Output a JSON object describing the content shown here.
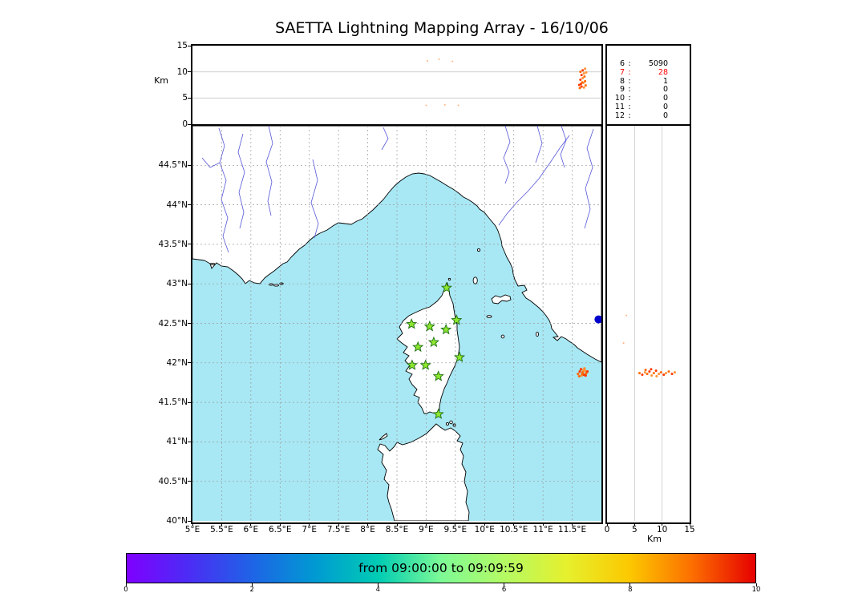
{
  "title": "SAETTA Lightning Mapping Array - 16/10/06",
  "chart_data": {
    "type": "scatter",
    "subplots": [
      "altitude_vs_longitude",
      "source_count_by_station",
      "map_lat_lon",
      "altitude_vs_latitude",
      "time_colorbar"
    ],
    "alt_axis": {
      "label": "Km",
      "range": [
        0,
        15
      ],
      "grid": [
        5,
        10
      ],
      "ticks": [
        {
          "v": 0,
          "label": "0"
        },
        {
          "v": 5,
          "label": "5"
        },
        {
          "v": 10,
          "label": "10"
        },
        {
          "v": 15,
          "label": "15"
        }
      ]
    },
    "map": {
      "lon_range": [
        5,
        12
      ],
      "lat_range": [
        40,
        45
      ],
      "lat_ticks": [
        {
          "v": 44.5,
          "label": "44.5°N"
        },
        {
          "v": 44,
          "label": "44°N"
        },
        {
          "v": 43.5,
          "label": "43.5°N"
        },
        {
          "v": 43,
          "label": "43°N"
        },
        {
          "v": 42.5,
          "label": "42.5°N"
        },
        {
          "v": 42,
          "label": "42°N"
        },
        {
          "v": 41.5,
          "label": "41.5°N"
        },
        {
          "v": 41,
          "label": "41°N"
        },
        {
          "v": 40.5,
          "label": "40.5°N"
        },
        {
          "v": 40,
          "label": "40°N"
        }
      ],
      "lon_ticks": [
        {
          "v": 5,
          "label": "5°E"
        },
        {
          "v": 5.5,
          "label": "5.5°E"
        },
        {
          "v": 6,
          "label": "6°E"
        },
        {
          "v": 6.5,
          "label": "6.5°E"
        },
        {
          "v": 7,
          "label": "7°E"
        },
        {
          "v": 7.5,
          "label": "7.5°E"
        },
        {
          "v": 8,
          "label": "8°E"
        },
        {
          "v": 8.5,
          "label": "8.5°E"
        },
        {
          "v": 9,
          "label": "9°E"
        },
        {
          "v": 9.5,
          "label": "9.5°E"
        },
        {
          "v": 10,
          "label": "10°E"
        },
        {
          "v": 10.5,
          "label": "10.5°E"
        },
        {
          "v": 11,
          "label": "11°E"
        },
        {
          "v": 11.5,
          "label": "11.5°E"
        }
      ],
      "stations_lon_lat": [
        [
          9.35,
          42.95
        ],
        [
          8.75,
          42.49
        ],
        [
          9.06,
          42.46
        ],
        [
          9.34,
          42.42
        ],
        [
          9.52,
          42.54
        ],
        [
          8.86,
          42.2
        ],
        [
          9.13,
          42.26
        ],
        [
          9.57,
          42.07
        ],
        [
          8.76,
          41.97
        ],
        [
          8.99,
          41.97
        ],
        [
          9.21,
          41.83
        ],
        [
          9.21,
          41.35
        ]
      ],
      "lightning_lon_lat": [
        [
          11.6,
          41.86
        ],
        [
          11.63,
          41.89
        ],
        [
          11.66,
          41.84
        ],
        [
          11.68,
          41.88
        ],
        [
          11.7,
          41.85
        ],
        [
          11.72,
          41.9
        ],
        [
          11.74,
          41.87
        ],
        [
          11.65,
          41.92
        ],
        [
          11.69,
          41.91
        ],
        [
          11.62,
          41.83
        ],
        [
          11.76,
          41.89
        ],
        [
          11.71,
          41.93
        ],
        [
          11.67,
          41.86
        ],
        [
          11.73,
          41.84
        ]
      ],
      "blue_marker_lon_lat": [
        11.95,
        42.55
      ]
    },
    "alt_lon_points": [
      [
        11.63,
        6.9
      ],
      [
        11.66,
        7.2
      ],
      [
        11.7,
        7.0
      ],
      [
        11.73,
        7.4
      ],
      [
        11.65,
        7.7
      ],
      [
        11.69,
        7.9
      ],
      [
        11.72,
        8.2
      ],
      [
        11.64,
        8.5
      ],
      [
        11.68,
        8.8
      ],
      [
        11.71,
        9.1
      ],
      [
        11.66,
        9.4
      ],
      [
        11.7,
        9.7
      ],
      [
        11.64,
        10.0
      ],
      [
        11.68,
        10.3
      ],
      [
        11.72,
        10.6
      ],
      [
        11.67,
        8.0
      ],
      [
        11.62,
        7.5
      ],
      [
        11.74,
        9.9
      ]
    ],
    "alt_lon_faint": [
      [
        9.02,
        12.1
      ],
      [
        9.22,
        12.4
      ],
      [
        9.45,
        12.0
      ],
      [
        9.0,
        3.6
      ],
      [
        9.32,
        3.7
      ],
      [
        9.55,
        3.6
      ]
    ],
    "alt_lat_points": [
      [
        5.9,
        41.87
      ],
      [
        6.4,
        41.85
      ],
      [
        6.9,
        41.88
      ],
      [
        7.3,
        41.86
      ],
      [
        7.7,
        41.89
      ],
      [
        8.1,
        41.84
      ],
      [
        8.5,
        41.87
      ],
      [
        8.9,
        41.9
      ],
      [
        9.4,
        41.86
      ],
      [
        9.8,
        41.88
      ],
      [
        10.3,
        41.85
      ],
      [
        10.7,
        41.87
      ],
      [
        11.2,
        41.89
      ],
      [
        11.8,
        41.86
      ],
      [
        12.3,
        41.88
      ],
      [
        7.0,
        41.91
      ],
      [
        8.0,
        41.92
      ],
      [
        9.0,
        41.83
      ]
    ],
    "alt_lat_faint": [
      [
        3.0,
        42.25
      ],
      [
        3.5,
        42.6
      ]
    ],
    "histogram": {
      "rows": [
        {
          "stations": "6",
          "count": "5090",
          "color": "#000000"
        },
        {
          "stations": "7",
          "count": "28",
          "color": "#ff0000"
        },
        {
          "stations": "8",
          "count": "1",
          "color": "#000000"
        },
        {
          "stations": "9",
          "count": "0",
          "color": "#000000"
        },
        {
          "stations": "10",
          "count": "0",
          "color": "#000000"
        },
        {
          "stations": "11",
          "count": "0",
          "color": "#000000"
        },
        {
          "stations": "12",
          "count": "0",
          "color": "#000000"
        }
      ]
    },
    "colorbar": {
      "label": "from 09:00:00 to 09:09:59",
      "range": [
        0,
        10
      ],
      "ticks": [
        {
          "v": 0,
          "label": "0"
        },
        {
          "v": 2,
          "label": "2"
        },
        {
          "v": 4,
          "label": "4"
        },
        {
          "v": 6,
          "label": "6"
        },
        {
          "v": 8,
          "label": "8"
        },
        {
          "v": 10,
          "label": "10"
        }
      ]
    },
    "colors": {
      "sea": "#a8e8f4",
      "land": "#ffffff",
      "coast": "#000000",
      "river": "#5757d9",
      "grid": "#999999",
      "station_fill": "#8ce62e",
      "station_stroke": "#1e6e14",
      "lightning": [
        "#ff6a00",
        "#fd3a00",
        "#ff9234"
      ],
      "faint": "#ffb380",
      "blue_marker": "#0000cc"
    }
  }
}
